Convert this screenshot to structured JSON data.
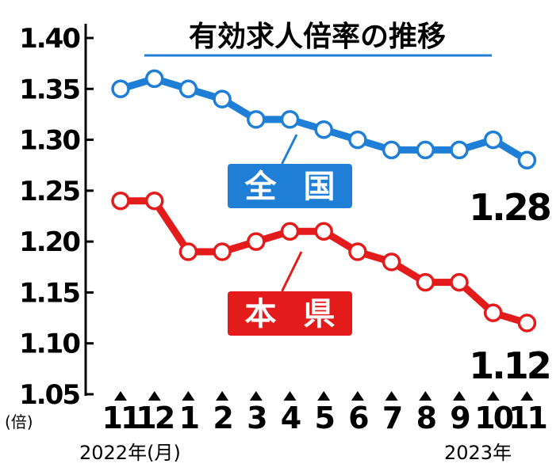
{
  "chart_data": {
    "type": "line",
    "title": "有効求人倍率の推移",
    "y_unit": "(倍)",
    "ylim": [
      1.05,
      1.4
    ],
    "yticks": [
      "1.40",
      "1.35",
      "1.30",
      "1.25",
      "1.20",
      "1.15",
      "1.10",
      "1.05"
    ],
    "categories": [
      "11",
      "12",
      "1",
      "2",
      "3",
      "4",
      "5",
      "6",
      "7",
      "8",
      "9",
      "10",
      "11"
    ],
    "x_start_label": "2022年(月)",
    "x_end_label": "2023年",
    "series": [
      {
        "name": "全 国",
        "color": "#1f7fd6",
        "values": [
          1.35,
          1.36,
          1.35,
          1.34,
          1.32,
          1.32,
          1.31,
          1.3,
          1.29,
          1.29,
          1.29,
          1.3,
          1.28
        ],
        "end_label": "1.28"
      },
      {
        "name": "本 県",
        "color": "#e31b1b",
        "values": [
          1.24,
          1.24,
          1.19,
          1.19,
          1.2,
          1.21,
          1.21,
          1.19,
          1.18,
          1.16,
          1.16,
          1.13,
          1.12
        ],
        "end_label": "1.12"
      }
    ]
  }
}
